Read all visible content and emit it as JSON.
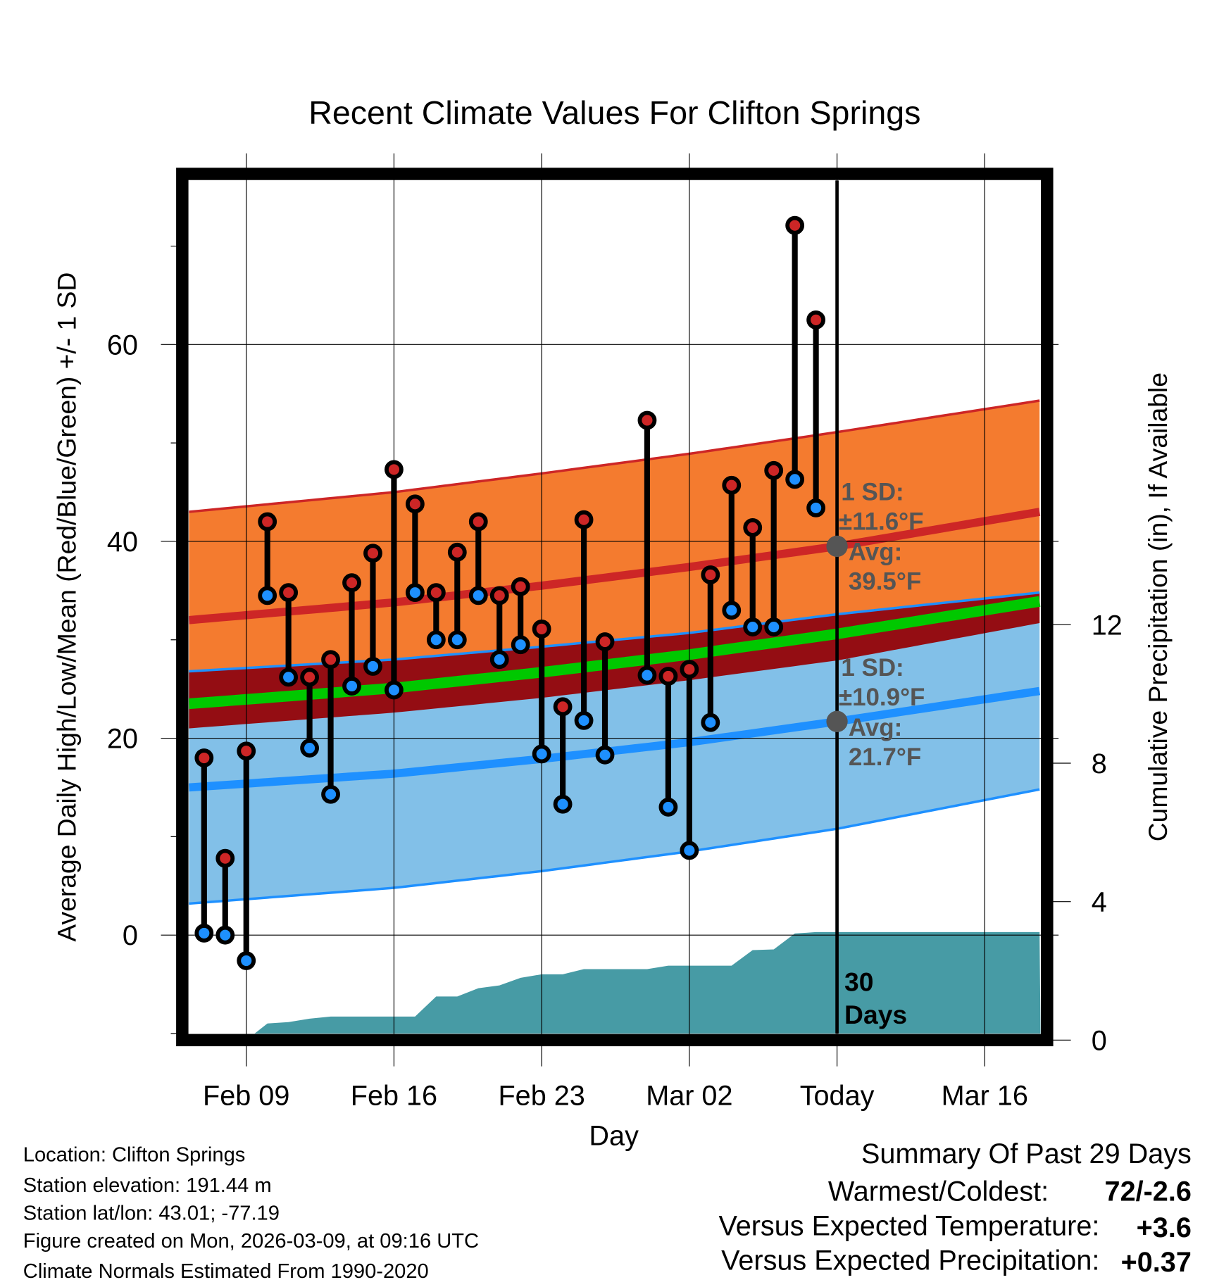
{
  "chart_data": {
    "type": "line",
    "title": "Recent Climate Values For Clifton Springs",
    "xlabel": "Day",
    "ylabel": "Average Daily High/Low/Mean (Red/Blue/Green) +/- 1 SD",
    "y2label": "Cumulative Precipitation (in), If Available",
    "ylim": [
      -10,
      76.7
    ],
    "y2lim": [
      0,
      17.5
    ],
    "xlim_days_from_feb09": [
      -2.72,
      37.6
    ],
    "grid": true,
    "x_ticks": [
      {
        "label": "Feb 09",
        "day": 0
      },
      {
        "label": "Feb 16",
        "day": 7
      },
      {
        "label": "Feb 23",
        "day": 14
      },
      {
        "label": "Mar 02",
        "day": 21
      },
      {
        "label": "Today",
        "day": 28
      },
      {
        "label": "Mar 16",
        "day": 35
      }
    ],
    "y_ticks": [
      0,
      20,
      40,
      60
    ],
    "y2_ticks": [
      0,
      4,
      8,
      12
    ],
    "today_day": 28,
    "today_label": "30 Days",
    "normals": {
      "days": [
        -2.72,
        7,
        14,
        21,
        28,
        37.6
      ],
      "avg_high": [
        32,
        33.8,
        35.5,
        37.4,
        39.5,
        43
      ],
      "sd_high": [
        11,
        11.2,
        11.4,
        11.5,
        11.6,
        11.3
      ],
      "avg_low": [
        15,
        16.4,
        17.9,
        19.6,
        21.7,
        24.8
      ],
      "sd_low": [
        11.8,
        11.6,
        11.4,
        11.1,
        10.9,
        10
      ]
    },
    "annotations": {
      "high_sd_l1": "1 SD:",
      "high_sd_l2": "±11.6°F",
      "high_avg_l1": "Avg:",
      "high_avg_l2": "39.5°F",
      "low_sd_l1": "1 SD:",
      "low_sd_l2": "±10.9°F",
      "low_avg_l1": "Avg:",
      "low_avg_l2": "21.7°F",
      "high_avg_value": 39.5,
      "low_avg_value": 21.7
    },
    "daily": {
      "days": [
        -2,
        -1,
        0,
        1,
        2,
        3,
        4,
        5,
        6,
        7,
        8,
        9,
        10,
        11,
        12,
        13,
        14,
        15,
        16,
        17,
        19,
        20,
        21,
        22,
        23,
        24,
        25,
        26,
        27
      ],
      "high": [
        18,
        7.8,
        18.7,
        42,
        34.8,
        26.2,
        28,
        35.8,
        38.8,
        47.3,
        43.8,
        34.8,
        38.9,
        42,
        34.5,
        35.4,
        31.1,
        23.2,
        42.2,
        29.8,
        52.3,
        26.3,
        27,
        36.6,
        45.7,
        41.4,
        47.2,
        72.1,
        62.5
      ],
      "low": [
        0.2,
        0,
        -2.6,
        34.5,
        26.2,
        19,
        14.3,
        25.3,
        27.3,
        24.9,
        34.8,
        30,
        30,
        34.5,
        28,
        29.5,
        18.4,
        13.3,
        21.8,
        18.3,
        26.4,
        13,
        8.6,
        21.6,
        33,
        31.3,
        31.3,
        46.3,
        43.4
      ]
    },
    "precip_cumulative": {
      "days": [
        0,
        1,
        2,
        3,
        4,
        5,
        6,
        7,
        8,
        9,
        10,
        11,
        12,
        13,
        14,
        15,
        16,
        17,
        18,
        19,
        20,
        21,
        22,
        23,
        24,
        25,
        26,
        27,
        28,
        37.6
      ],
      "values": [
        0,
        0.48,
        0.52,
        0.62,
        0.68,
        0.68,
        0.68,
        0.68,
        0.68,
        1.26,
        1.26,
        1.5,
        1.58,
        1.8,
        1.9,
        1.9,
        2.05,
        2.05,
        2.05,
        2.05,
        2.15,
        2.15,
        2.15,
        2.15,
        2.6,
        2.62,
        3.08,
        3.12,
        3.12,
        3.12
      ]
    }
  },
  "colors": {
    "high_band": "#f47b2f",
    "overlap": "#940d13",
    "low_band": "#82c0e8",
    "high_line": "#cd2626",
    "low_line": "#1e90ff",
    "mean_line": "#00c800",
    "precip": "#479ba5",
    "annotation": "#555555",
    "warm": "#cd2626",
    "wet": "#1fc21f"
  },
  "footer": {
    "location": "Location: Clifton Springs",
    "elevation": "Station elevation: 191.44 m",
    "latlon": "Station lat/lon: 43.01; -77.19",
    "created": "Figure created on Mon, 2026-03-09, at 09:16 UTC",
    "normals": "Climate Normals Estimated From 1990-2020"
  },
  "summary": {
    "title": "Summary Of Past 29 Days",
    "warm_cold_label": "Warmest/Coldest:",
    "warm_cold_value": "72/-2.6",
    "temp_label": "Versus Expected Temperature:",
    "temp_value": "+3.6",
    "precip_label": "Versus Expected Precipitation:",
    "precip_value": "+0.37"
  }
}
